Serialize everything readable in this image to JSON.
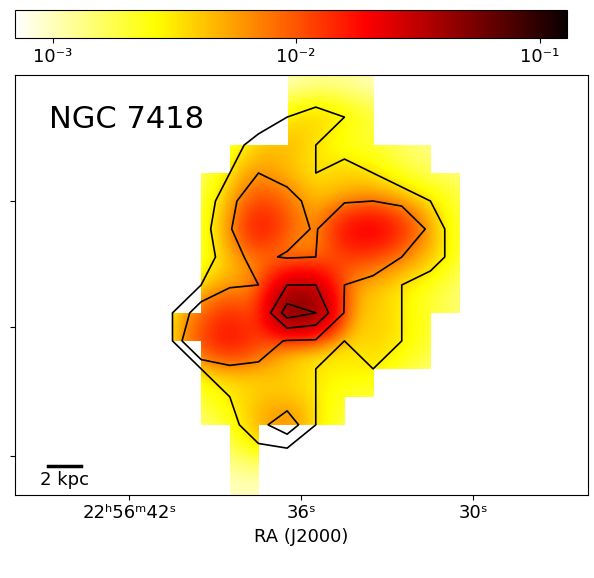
{
  "chart_data": {
    "type": "heatmap",
    "title": "NGC 7418",
    "xlabel": "RA (J2000)",
    "xlim": [
      46,
      26
    ],
    "xticks": [
      {
        "value": 42,
        "label": "22ʰ56ᵐ42ˢ"
      },
      {
        "value": 36,
        "label": "36ˢ"
      },
      {
        "value": 30,
        "label": "30ˢ"
      }
    ],
    "ylim": [
      0,
      15
    ],
    "yticks": [
      1.4,
      6,
      10.5
    ],
    "tick_labels": "x",
    "color": "hot_r",
    "scale_bar": {
      "label": "2 kpc",
      "length": 1.17
    },
    "contour_levels": [
      0.003,
      0.006,
      0.03,
      0.05
    ],
    "colorbar": {
      "range": [
        0.0007,
        0.13
      ],
      "log": true,
      "ticks": [
        {
          "value": 0.001,
          "label": "10⁻³"
        },
        {
          "value": 0.01,
          "label": "10⁻²"
        },
        {
          "value": 0.1,
          "label": "10⁻¹"
        }
      ]
    },
    "cells": [
      [
        null,
        null,
        null,
        null,
        null,
        null,
        null,
        null,
        0.0008,
        0.001,
        0.0012,
        0.0012,
        0.001,
        0.0008,
        null,
        null,
        null,
        null,
        null,
        null
      ],
      [
        null,
        null,
        null,
        null,
        null,
        null,
        0.0008,
        0.001,
        0.0015,
        0.003,
        0.004,
        0.003,
        0.002,
        0.0015,
        0.001,
        0.0008,
        null,
        null,
        null,
        null
      ],
      [
        null,
        null,
        null,
        null,
        null,
        0.0008,
        0.0012,
        0.002,
        0.004,
        0.005,
        0.003,
        0.002,
        0.002,
        0.0015,
        0.0015,
        0.001,
        0.0008,
        null,
        null,
        null
      ],
      [
        null,
        null,
        null,
        null,
        null,
        0.001,
        0.0015,
        0.003,
        0.006,
        0.004,
        0.003,
        0.004,
        0.003,
        0.002,
        0.0015,
        0.0015,
        0.001,
        null,
        null,
        null
      ],
      [
        null,
        null,
        null,
        null,
        null,
        0.001,
        0.002,
        0.004,
        0.012,
        0.008,
        0.004,
        0.005,
        0.006,
        0.004,
        0.003,
        0.002,
        0.001,
        null,
        null,
        null
      ],
      [
        null,
        null,
        null,
        null,
        null,
        0.001,
        0.002,
        0.005,
        0.02,
        0.01,
        0.005,
        0.02,
        0.025,
        0.015,
        0.004,
        0.002,
        0.001,
        null,
        null,
        null
      ],
      [
        null,
        null,
        null,
        null,
        null,
        0.0012,
        0.002,
        0.004,
        0.008,
        0.005,
        0.006,
        0.012,
        0.01,
        0.006,
        0.004,
        0.002,
        0.001,
        null,
        null,
        null
      ],
      [
        null,
        null,
        null,
        null,
        0.0008,
        0.0015,
        0.003,
        0.005,
        0.006,
        0.03,
        0.03,
        0.006,
        0.004,
        0.003,
        0.002,
        0.0015,
        0.001,
        null,
        null,
        null
      ],
      [
        null,
        null,
        null,
        null,
        0.001,
        0.003,
        0.008,
        0.015,
        0.008,
        0.06,
        0.05,
        0.005,
        0.004,
        0.003,
        0.002,
        0.0015,
        0.001,
        null,
        null,
        null
      ],
      [
        null,
        null,
        null,
        null,
        0.001,
        0.003,
        0.012,
        0.02,
        0.012,
        0.005,
        0.004,
        0.003,
        0.004,
        0.003,
        0.002,
        0.0015,
        0.0008,
        null,
        null,
        null
      ],
      [
        null,
        null,
        null,
        null,
        0.0008,
        0.002,
        0.003,
        0.004,
        0.004,
        0.004,
        0.003,
        0.003,
        0.003,
        0.002,
        0.0015,
        0.001,
        null,
        null,
        null,
        null
      ],
      [
        null,
        null,
        null,
        null,
        null,
        0.0015,
        0.002,
        0.003,
        0.004,
        0.004,
        0.003,
        0.002,
        0.002,
        0.0015,
        0.001,
        0.0008,
        null,
        null,
        null,
        null
      ],
      [
        null,
        null,
        null,
        null,
        null,
        0.001,
        0.0015,
        0.002,
        0.005,
        0.008,
        0.003,
        0.002,
        0.0015,
        0.001,
        null,
        null,
        null,
        null,
        null,
        null
      ],
      [
        null,
        null,
        null,
        null,
        null,
        0.0008,
        0.001,
        0.0015,
        0.002,
        0.002,
        0.0015,
        0.001,
        0.0008,
        null,
        null,
        null,
        null,
        null,
        null,
        null
      ],
      [
        null,
        null,
        null,
        null,
        null,
        null,
        0.0008,
        0.001,
        0.001,
        0.0008,
        null,
        null,
        null,
        null,
        null,
        null,
        null,
        null,
        null,
        null
      ]
    ]
  }
}
